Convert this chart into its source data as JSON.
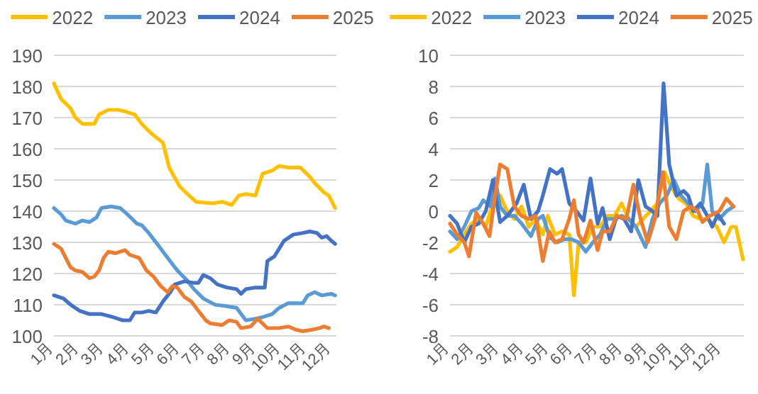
{
  "chart_data": [
    {
      "type": "line",
      "xlim": [
        1,
        12.2
      ],
      "ylim": [
        100,
        190
      ],
      "yticks": [
        100,
        110,
        120,
        130,
        140,
        150,
        160,
        170,
        180,
        190
      ],
      "xticks": [
        {
          "value": 1,
          "label": "1月"
        },
        {
          "value": 2,
          "label": "2月"
        },
        {
          "value": 3,
          "label": "3月"
        },
        {
          "value": 4,
          "label": "4月"
        },
        {
          "value": 5,
          "label": "5月"
        },
        {
          "value": 6,
          "label": "6月"
        },
        {
          "value": 7,
          "label": "7月"
        },
        {
          "value": 8,
          "label": "8月"
        },
        {
          "value": 9,
          "label": "9月"
        },
        {
          "value": 10,
          "label": "10月"
        },
        {
          "value": 11,
          "label": "11月"
        },
        {
          "value": 12,
          "label": "12月"
        }
      ],
      "grid": "y",
      "legend": "top",
      "marker": "none",
      "line_style": "solid",
      "series": [
        {
          "name": "2022",
          "color": "#ffc000",
          "x": [
            1.0,
            1.28,
            1.66,
            1.85,
            2.13,
            2.6,
            2.79,
            3.16,
            3.54,
            3.82,
            4.2,
            4.48,
            4.85,
            5.32,
            5.57,
            5.98,
            6.36,
            6.64,
            7.3,
            7.67,
            8.05,
            8.33,
            8.61,
            8.99,
            9.27,
            9.65,
            9.93,
            10.3,
            10.77,
            11.15,
            11.34,
            11.71,
            11.9,
            12.15
          ],
          "values": [
            181,
            176,
            173,
            170,
            168,
            168,
            171,
            172.5,
            172.5,
            172,
            171,
            168,
            165,
            162,
            154,
            148,
            145,
            143,
            142.5,
            143,
            142,
            145,
            145.5,
            145,
            152,
            153,
            154.5,
            154,
            154,
            151,
            149,
            146,
            145,
            141
          ]
        },
        {
          "name": "2023",
          "color": "#5b9bd5",
          "x": [
            1.0,
            1.28,
            1.47,
            1.85,
            2.13,
            2.41,
            2.69,
            2.88,
            3.26,
            3.63,
            3.91,
            4.29,
            4.48,
            4.76,
            5.14,
            5.51,
            5.89,
            6.26,
            6.55,
            6.92,
            7.39,
            7.86,
            8.24,
            8.61,
            8.99,
            9.27,
            9.65,
            9.93,
            10.3,
            10.87,
            11.06,
            11.34,
            11.62,
            12.0,
            12.15
          ],
          "values": [
            141,
            139,
            137,
            136,
            137,
            136.5,
            138,
            141,
            141.5,
            141,
            139,
            136,
            135.5,
            133,
            129,
            125,
            121,
            118,
            115,
            112,
            110,
            109.5,
            109,
            105,
            105.5,
            106,
            107,
            109,
            110.5,
            110.5,
            113,
            114,
            113,
            113.5,
            113
          ]
        },
        {
          "name": "2024",
          "color": "#4472c4",
          "x": [
            1.0,
            1.38,
            1.66,
            2.03,
            2.41,
            2.88,
            3.35,
            3.73,
            4.01,
            4.2,
            4.48,
            4.76,
            5.04,
            5.32,
            5.61,
            5.79,
            6.17,
            6.55,
            6.73,
            6.92,
            7.2,
            7.48,
            7.86,
            8.24,
            8.42,
            8.61,
            8.99,
            9.36,
            9.46,
            9.74,
            9.93,
            10.12,
            10.49,
            10.87,
            11.15,
            11.43,
            11.62,
            11.81,
            12.0,
            12.15
          ],
          "values": [
            113,
            112,
            110,
            108,
            107,
            107,
            106,
            105,
            105,
            107.5,
            107.5,
            108,
            107.5,
            111,
            114,
            116.5,
            117.5,
            117,
            117,
            119.5,
            118.5,
            116.5,
            115.5,
            115,
            113.5,
            115,
            115.5,
            115.5,
            124,
            125.5,
            128,
            130.5,
            132.5,
            133,
            133.5,
            133,
            131.5,
            132,
            130.5,
            129.5
          ]
        },
        {
          "name": "2025",
          "color": "#ed7d31",
          "x": [
            1.0,
            1.28,
            1.47,
            1.66,
            1.85,
            2.13,
            2.41,
            2.6,
            2.79,
            2.97,
            3.16,
            3.44,
            3.82,
            4.01,
            4.38,
            4.67,
            4.95,
            5.23,
            5.51,
            5.7,
            5.89,
            6.17,
            6.45,
            6.73,
            7.02,
            7.2,
            7.67,
            7.95,
            8.24,
            8.42,
            8.8,
            9.08,
            9.27,
            9.46,
            9.93,
            10.3,
            10.59,
            10.87,
            11.24,
            11.53,
            11.71,
            11.9
          ],
          "values": [
            129.5,
            128,
            125,
            122,
            121,
            120.5,
            118.5,
            119,
            121,
            125,
            127,
            126.5,
            127.5,
            126,
            125,
            121,
            119,
            116,
            114,
            116,
            115.5,
            112.5,
            111,
            108,
            105,
            104,
            103.5,
            105,
            104.5,
            102.5,
            103,
            105.5,
            104,
            102.5,
            102.5,
            103,
            102,
            101.5,
            102,
            102.5,
            103,
            102.5
          ]
        }
      ]
    },
    {
      "type": "line",
      "xlim": [
        1,
        12.9
      ],
      "ylim": [
        -8,
        10
      ],
      "yticks": [
        -8,
        -6,
        -4,
        -2,
        0,
        2,
        4,
        6,
        8,
        10
      ],
      "xticks": [
        {
          "value": 1,
          "label": "1月"
        },
        {
          "value": 2,
          "label": "2月"
        },
        {
          "value": 3,
          "label": "3月"
        },
        {
          "value": 4,
          "label": "4月"
        },
        {
          "value": 5,
          "label": "5月"
        },
        {
          "value": 6,
          "label": "6月"
        },
        {
          "value": 7,
          "label": "7月"
        },
        {
          "value": 8,
          "label": "8月"
        },
        {
          "value": 9,
          "label": "9月"
        },
        {
          "value": 10,
          "label": "10月"
        },
        {
          "value": 11,
          "label": "11月"
        },
        {
          "value": 12,
          "label": "12月"
        }
      ],
      "grid": "y",
      "legend": "top",
      "marker": "none",
      "line_style": "solid",
      "series": [
        {
          "name": "2022",
          "color": "#ffc000",
          "x": [
            1.0,
            1.29,
            1.58,
            1.87,
            2.16,
            2.45,
            2.74,
            3.03,
            3.32,
            3.61,
            3.9,
            4.19,
            4.47,
            4.76,
            4.96,
            5.25,
            5.54,
            5.83,
            6.02,
            6.21,
            6.5,
            6.79,
            7.08,
            7.37,
            7.66,
            7.95,
            8.24,
            8.53,
            8.82,
            9.11,
            9.4,
            9.69,
            9.98,
            10.27,
            10.56,
            10.85,
            11.14,
            11.42,
            11.81,
            12.1,
            12.39,
            12.58,
            12.87
          ],
          "values": [
            -2.6,
            -2.3,
            -1.5,
            -0.8,
            -0.5,
            -1,
            0.5,
            1,
            0,
            -0.5,
            0.3,
            -1,
            -0.5,
            -1.5,
            -0.3,
            -1.5,
            -1.3,
            -1.5,
            -5.4,
            -2,
            -2,
            -1,
            -1,
            -0.3,
            -0.3,
            0.5,
            -0.5,
            -1,
            -0.5,
            0,
            0.5,
            2.5,
            1.5,
            0.8,
            0.5,
            -0.3,
            -0.5,
            -0.5,
            -1,
            -2,
            -1,
            -1,
            -3.1
          ]
        },
        {
          "name": "2023",
          "color": "#5b9bd5",
          "x": [
            1.0,
            1.29,
            1.58,
            1.87,
            2.16,
            2.35,
            2.64,
            2.83,
            3.03,
            3.32,
            3.61,
            3.9,
            4.28,
            4.57,
            4.76,
            5.05,
            5.34,
            5.63,
            5.92,
            6.21,
            6.5,
            6.79,
            7.08,
            7.37,
            7.66,
            7.95,
            8.24,
            8.53,
            8.92,
            9.2,
            9.49,
            9.78,
            10.07,
            10.36,
            10.65,
            10.94,
            11.23,
            11.42,
            11.62,
            11.91,
            12.2,
            12.49
          ],
          "values": [
            -1.3,
            -1.8,
            -1,
            0,
            0.2,
            0.7,
            0.3,
            2.1,
            0.3,
            -0.3,
            -0.3,
            -0.8,
            -1.6,
            -0.5,
            -0.3,
            -1.7,
            -2,
            -1.8,
            -1.8,
            -2,
            -2.6,
            -2,
            -1.5,
            -0.5,
            -0.5,
            -0.3,
            -0.5,
            -1,
            -2.3,
            -0.5,
            0.5,
            1,
            2,
            1,
            0.5,
            0,
            0.5,
            3,
            0,
            -0.5,
            0,
            0.3
          ]
        },
        {
          "name": "2024",
          "color": "#4472c4",
          "x": [
            1.0,
            1.29,
            1.58,
            1.87,
            2.16,
            2.45,
            2.74,
            3.03,
            3.32,
            3.7,
            3.99,
            4.28,
            4.57,
            4.76,
            5.05,
            5.34,
            5.54,
            5.83,
            6.12,
            6.41,
            6.69,
            6.98,
            7.18,
            7.47,
            7.76,
            8.05,
            8.34,
            8.63,
            8.92,
            9.2,
            9.4,
            9.65,
            9.88,
            10.17,
            10.46,
            10.65,
            10.85,
            11.14,
            11.42,
            11.62,
            11.85,
            12.1
          ],
          "values": [
            -0.3,
            -0.8,
            -2,
            -1,
            -0.8,
            0,
            2,
            -0.7,
            -0.3,
            0.5,
            1.7,
            -0.5,
            0,
            1,
            2.7,
            2.4,
            2.7,
            0.5,
            0,
            -0.6,
            2.1,
            -0.8,
            0.2,
            -1.8,
            -0.3,
            -0.5,
            -1.3,
            2,
            0.3,
            0,
            -0.3,
            8.2,
            3,
            1,
            1.3,
            1,
            0,
            0.5,
            -0.3,
            -1,
            -0.2,
            -0.8
          ]
        },
        {
          "name": "2025",
          "color": "#ed7d31",
          "x": [
            1.0,
            1.29,
            1.58,
            1.77,
            2.06,
            2.35,
            2.6,
            2.83,
            3.03,
            3.32,
            3.61,
            3.9,
            4.19,
            4.47,
            4.76,
            5.02,
            5.25,
            5.54,
            5.83,
            6.02,
            6.21,
            6.41,
            6.69,
            6.98,
            7.18,
            7.47,
            7.76,
            8.14,
            8.43,
            8.72,
            9.01,
            9.3,
            9.63,
            9.88,
            10.17,
            10.46,
            10.75,
            11.04,
            11.23,
            11.52,
            11.91,
            12.2,
            12.49
          ],
          "values": [
            -0.8,
            -1.5,
            -2,
            -2.9,
            -0.1,
            -0.8,
            -1.6,
            1,
            3,
            2.7,
            0.3,
            -0.3,
            -0.5,
            -0.3,
            -3.2,
            -1.3,
            -2,
            -1.8,
            -0.5,
            0.7,
            -1.5,
            -2,
            -0.6,
            -2.5,
            -1.3,
            -1.3,
            -0.3,
            -0.5,
            1.7,
            -0.5,
            -2,
            -0.5,
            2.5,
            -1,
            -1.8,
            0,
            0.3,
            0,
            -0.7,
            -0.3,
            0,
            0.8,
            0.3
          ]
        }
      ]
    }
  ]
}
